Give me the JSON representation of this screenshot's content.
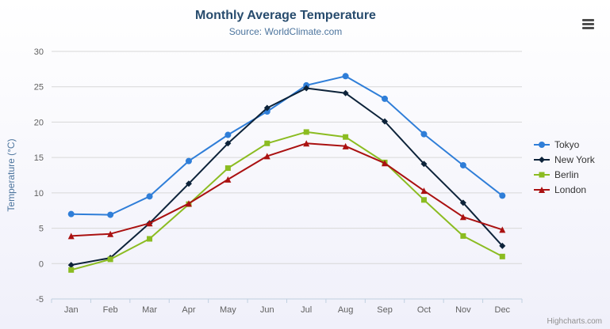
{
  "chart_data": {
    "type": "line",
    "title": "Monthly Average Temperature",
    "subtitle": "Source: WorldClimate.com",
    "xlabel": "",
    "ylabel": "Temperature (°C)",
    "ylim": [
      -5,
      30
    ],
    "ytick_step": 5,
    "ytick_labels": [
      "-5",
      "0",
      "5",
      "10",
      "15",
      "20",
      "25",
      "30"
    ],
    "grid": true,
    "legend_position": "right",
    "categories": [
      "Jan",
      "Feb",
      "Mar",
      "Apr",
      "May",
      "Jun",
      "Jul",
      "Aug",
      "Sep",
      "Oct",
      "Nov",
      "Dec"
    ],
    "series": [
      {
        "name": "Tokyo",
        "color": "#2f7ed8",
        "marker": "circle",
        "values": [
          7.0,
          6.9,
          9.5,
          14.5,
          18.2,
          21.5,
          25.2,
          26.5,
          23.3,
          18.3,
          13.9,
          9.6
        ]
      },
      {
        "name": "New York",
        "color": "#0d233a",
        "marker": "diamond",
        "values": [
          -0.2,
          0.8,
          5.7,
          11.3,
          17.0,
          22.0,
          24.8,
          24.1,
          20.1,
          14.1,
          8.6,
          2.5
        ]
      },
      {
        "name": "Berlin",
        "color": "#8bbc21",
        "marker": "square",
        "values": [
          -0.9,
          0.6,
          3.5,
          8.4,
          13.5,
          17.0,
          18.6,
          17.9,
          14.3,
          9.0,
          3.9,
          1.0
        ]
      },
      {
        "name": "London",
        "color": "#aa1111",
        "marker": "triangle",
        "values": [
          3.9,
          4.2,
          5.7,
          8.5,
          11.9,
          15.2,
          17.0,
          16.6,
          14.2,
          10.3,
          6.6,
          4.8
        ]
      }
    ]
  },
  "credits": "Highcharts.com",
  "export_menu": {
    "icon_name": "hamburger-menu-icon"
  }
}
